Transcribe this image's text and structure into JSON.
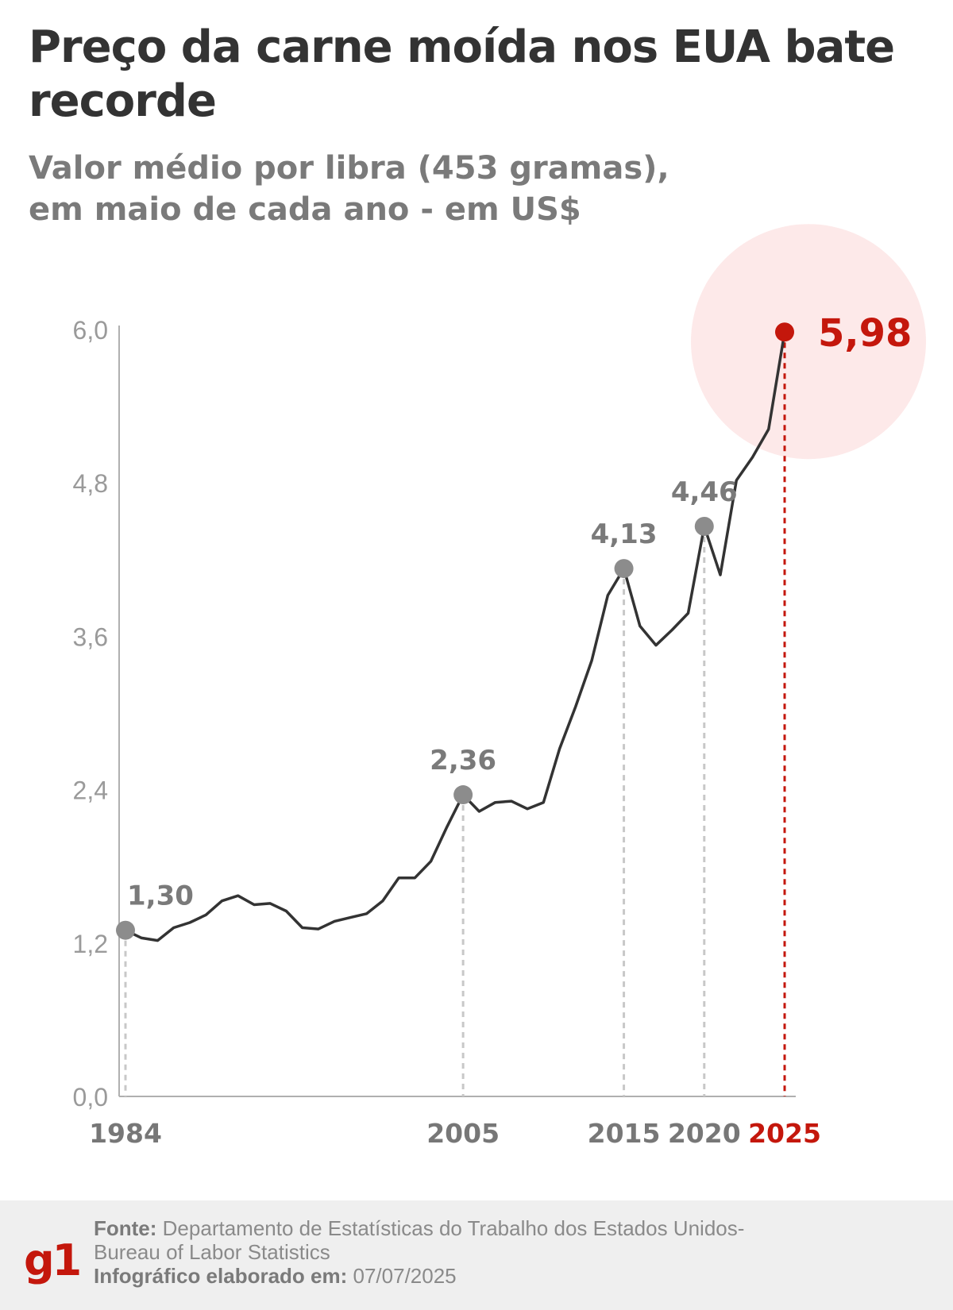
{
  "title": "Preço da carne moída nos EUA bate recorde",
  "subtitle_line1": "Valor médio por libra (453 gramas),",
  "subtitle_line2": "em maio de cada ano - em US$",
  "colors": {
    "line": "#333333",
    "grid": "#b0b0b0",
    "accent": "#c4170c",
    "highlight": "#999999",
    "halo": "#fde9e9"
  },
  "chart_data": {
    "type": "line",
    "title": "Preço da carne moída nos EUA bate recorde",
    "xlabel": "",
    "ylabel": "",
    "ylim": [
      0,
      6.0
    ],
    "xlim": [
      1984,
      2025
    ],
    "y_ticks": [
      "0,0",
      "1,2",
      "2,4",
      "3,6",
      "4,8",
      "6,0"
    ],
    "x_ticks": [
      {
        "year": 1984,
        "label": "1984"
      },
      {
        "year": 2005,
        "label": "2005"
      },
      {
        "year": 2015,
        "label": "2015"
      },
      {
        "year": 2020,
        "label": "2020"
      },
      {
        "year": 2025,
        "label": "2025"
      }
    ],
    "x": [
      1984,
      1985,
      1986,
      1987,
      1988,
      1989,
      1990,
      1991,
      1992,
      1993,
      1994,
      1995,
      1996,
      1997,
      1998,
      1999,
      2000,
      2001,
      2002,
      2003,
      2004,
      2005,
      2006,
      2007,
      2008,
      2009,
      2010,
      2011,
      2012,
      2013,
      2014,
      2015,
      2016,
      2017,
      2018,
      2019,
      2020,
      2021,
      2022,
      2023,
      2024,
      2025
    ],
    "y": [
      1.3,
      1.24,
      1.22,
      1.32,
      1.36,
      1.42,
      1.53,
      1.57,
      1.5,
      1.51,
      1.45,
      1.32,
      1.31,
      1.37,
      1.4,
      1.43,
      1.53,
      1.71,
      1.71,
      1.84,
      2.11,
      2.36,
      2.23,
      2.3,
      2.31,
      2.25,
      2.3,
      2.72,
      3.05,
      3.41,
      3.92,
      4.13,
      3.68,
      3.53,
      3.65,
      3.78,
      4.46,
      4.08,
      4.82,
      5.0,
      5.22,
      5.98
    ],
    "highlights": [
      {
        "year": 1984,
        "value": 1.3,
        "label": "1,30"
      },
      {
        "year": 2005,
        "value": 2.36,
        "label": "2,36"
      },
      {
        "year": 2015,
        "value": 4.13,
        "label": "4,13"
      },
      {
        "year": 2020,
        "value": 4.46,
        "label": "4,46"
      },
      {
        "year": 2025,
        "value": 5.98,
        "label": "5,98",
        "accent": true
      }
    ]
  },
  "footer": {
    "logo": "g1",
    "source_label": "Fonte:",
    "source_text": "Departamento de Estatísticas do Trabalho dos Estados Unidos-",
    "source_text2": "Bureau of Labor Statistics",
    "made_label": "Infográfico elaborado em:",
    "made_date": "07/07/2025"
  }
}
